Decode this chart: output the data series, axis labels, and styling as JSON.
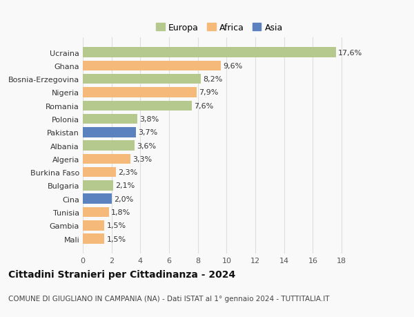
{
  "categories": [
    "Mali",
    "Gambia",
    "Tunisia",
    "Cina",
    "Bulgaria",
    "Burkina Faso",
    "Algeria",
    "Albania",
    "Pakistan",
    "Polonia",
    "Romania",
    "Nigeria",
    "Bosnia-Erzegovina",
    "Ghana",
    "Ucraina"
  ],
  "values": [
    1.5,
    1.5,
    1.8,
    2.0,
    2.1,
    2.3,
    3.3,
    3.6,
    3.7,
    3.8,
    7.6,
    7.9,
    8.2,
    9.6,
    17.6
  ],
  "labels": [
    "1,5%",
    "1,5%",
    "1,8%",
    "2,0%",
    "2,1%",
    "2,3%",
    "3,3%",
    "3,6%",
    "3,7%",
    "3,8%",
    "7,6%",
    "7,9%",
    "8,2%",
    "9,6%",
    "17,6%"
  ],
  "continent": [
    "Africa",
    "Africa",
    "Africa",
    "Asia",
    "Europa",
    "Africa",
    "Africa",
    "Europa",
    "Asia",
    "Europa",
    "Europa",
    "Africa",
    "Europa",
    "Africa",
    "Europa"
  ],
  "colors": {
    "Europa": "#b5c98e",
    "Africa": "#f5b97a",
    "Asia": "#5b82bf"
  },
  "xlim": [
    0,
    19
  ],
  "xticks": [
    0,
    2,
    4,
    6,
    8,
    10,
    12,
    14,
    16,
    18
  ],
  "title": "Cittadini Stranieri per Cittadinanza - 2024",
  "subtitle": "COMUNE DI GIUGLIANO IN CAMPANIA (NA) - Dati ISTAT al 1° gennaio 2024 - TUTTITALIA.IT",
  "bg_color": "#f9f9f9",
  "grid_color": "#dddddd",
  "bar_height": 0.75,
  "label_fontsize": 8,
  "ytick_fontsize": 8,
  "xtick_fontsize": 8,
  "title_fontsize": 10,
  "subtitle_fontsize": 7.5,
  "legend_fontsize": 9
}
